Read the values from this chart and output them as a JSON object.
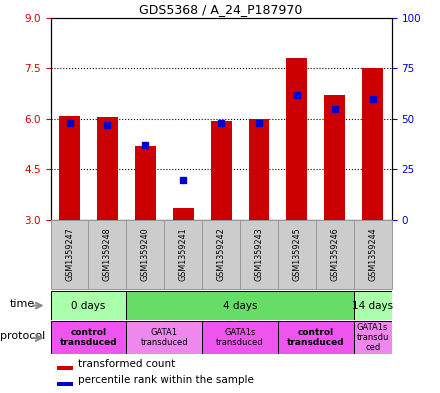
{
  "title": "GDS5368 / A_24_P187970",
  "samples": [
    "GSM1359247",
    "GSM1359248",
    "GSM1359240",
    "GSM1359241",
    "GSM1359242",
    "GSM1359243",
    "GSM1359245",
    "GSM1359246",
    "GSM1359244"
  ],
  "transformed_count": [
    6.1,
    6.05,
    5.2,
    3.35,
    5.95,
    6.0,
    7.8,
    6.7,
    7.5
  ],
  "percentile_rank": [
    48,
    47,
    37,
    20,
    48,
    48,
    62,
    55,
    60
  ],
  "ylim_left": [
    3,
    9
  ],
  "ylim_right": [
    0,
    100
  ],
  "yticks_left": [
    3,
    4.5,
    6,
    7.5,
    9
  ],
  "yticks_right": [
    0,
    25,
    50,
    75,
    100
  ],
  "bar_color": "#cc0000",
  "dot_color": "#0000cc",
  "bar_width": 0.55,
  "bar_bottom": 3.0,
  "time_groups": [
    {
      "label": "0 days",
      "start": 0,
      "end": 2,
      "color": "#aaffaa"
    },
    {
      "label": "4 days",
      "start": 2,
      "end": 8,
      "color": "#66dd66"
    },
    {
      "label": "14 days",
      "start": 8,
      "end": 9,
      "color": "#aaffaa"
    }
  ],
  "protocol_groups": [
    {
      "label": "control\ntransduced",
      "start": 0,
      "end": 2,
      "color": "#ee55ee",
      "bold": true
    },
    {
      "label": "GATA1\ntransduced",
      "start": 2,
      "end": 4,
      "color": "#ee88ee",
      "bold": false
    },
    {
      "label": "GATA1s\ntransduced",
      "start": 4,
      "end": 6,
      "color": "#ee55ee",
      "bold": false
    },
    {
      "label": "control\ntransduced",
      "start": 6,
      "end": 8,
      "color": "#ee55ee",
      "bold": true
    },
    {
      "label": "GATA1s\ntransdu\nced",
      "start": 8,
      "end": 9,
      "color": "#ee88ee",
      "bold": false
    }
  ],
  "left_label_color": "#cc0000",
  "right_label_color": "#0000cc",
  "grid_color": "black",
  "sample_box_color": "#cccccc",
  "sample_box_edge": "#999999",
  "fig_bg": "#ffffff"
}
